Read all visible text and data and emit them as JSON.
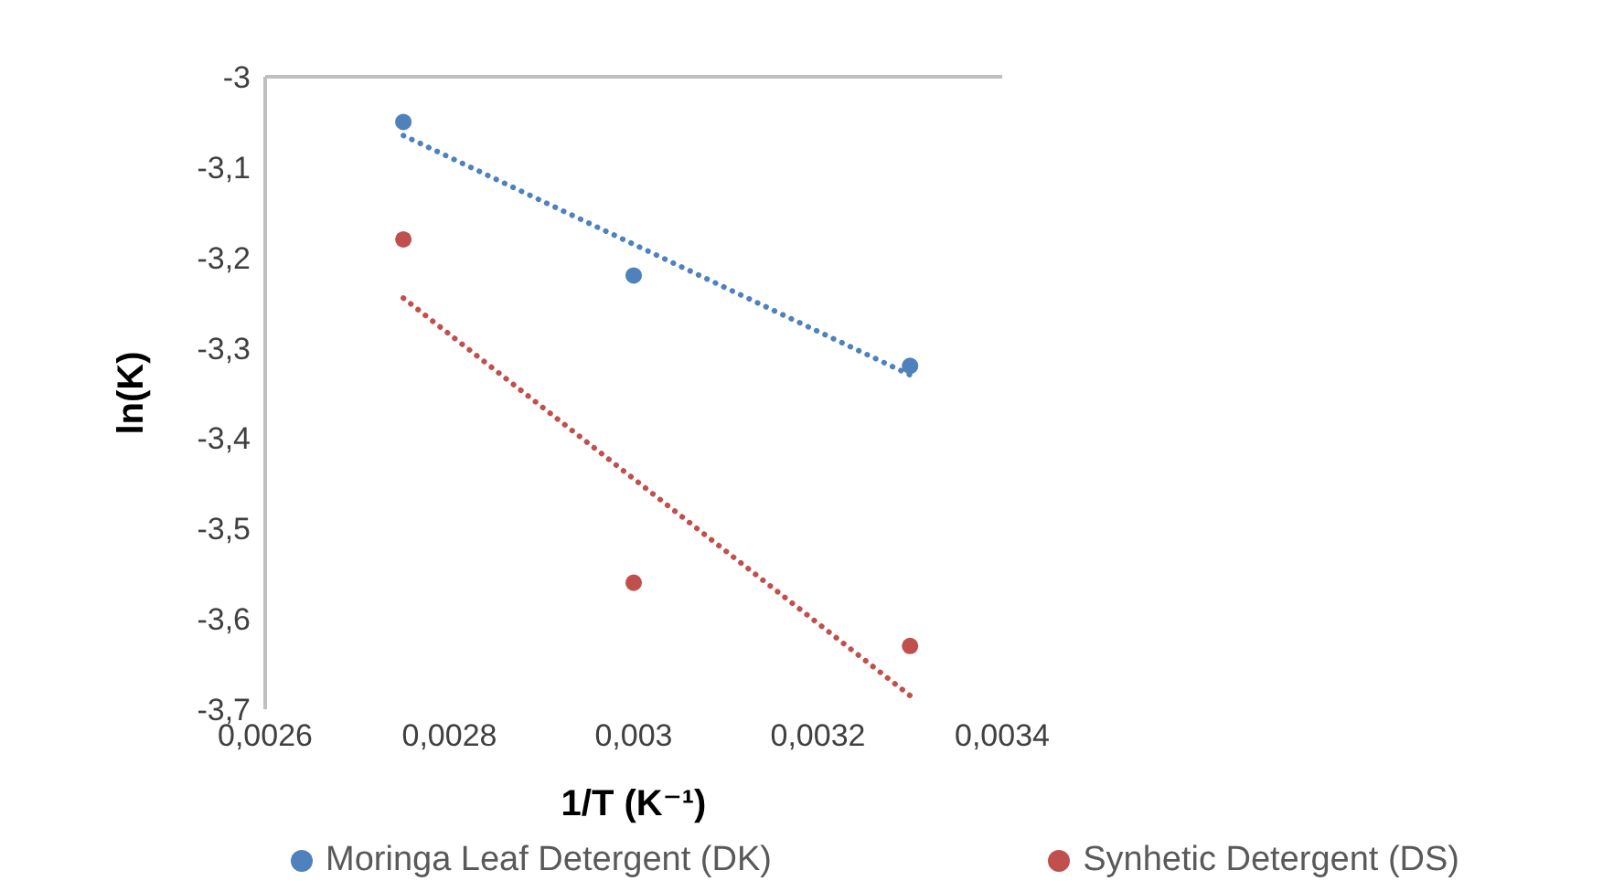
{
  "chart_data": {
    "type": "scatter",
    "xlabel": "1/T (K⁻¹)",
    "ylabel": "ln(K)",
    "xlim": [
      0.0026,
      0.0034
    ],
    "xticks": [
      {
        "value": 0.0026,
        "label": "0,0026"
      },
      {
        "value": 0.0028,
        "label": "0,0028"
      },
      {
        "value": 0.003,
        "label": "0,003"
      },
      {
        "value": 0.0032,
        "label": "0,0032"
      },
      {
        "value": 0.0034,
        "label": "0,0034"
      }
    ],
    "ylim": [
      -3.7,
      -3
    ],
    "yticks": [
      {
        "value": -3.7,
        "label": "-3,7"
      },
      {
        "value": -3.6,
        "label": "-3,6"
      },
      {
        "value": -3.5,
        "label": "-3,5"
      },
      {
        "value": -3.4,
        "label": "-3,4"
      },
      {
        "value": -3.3,
        "label": "-3,3"
      },
      {
        "value": -3.2,
        "label": "-3,2"
      },
      {
        "value": -3.1,
        "label": "-3,1"
      },
      {
        "value": -3,
        "label": "-3"
      }
    ],
    "grid": false,
    "legend": "bottom",
    "marker": "circle",
    "ref_lines": [
      {
        "axis": "y",
        "value": -3,
        "color": "#bfbfbf"
      }
    ],
    "series": [
      {
        "name": "Moringa Leaf Detergent (DK)",
        "color": "#4f81bd",
        "x": [
          0.00275,
          0.003,
          0.0033
        ],
        "values": [
          -3.05,
          -3.22,
          -3.32
        ]
      },
      {
        "name": "Synhetic Detergent (DS)",
        "color": "#c0504d",
        "x": [
          0.00275,
          0.003,
          0.0033
        ],
        "values": [
          -3.18,
          -3.56,
          -3.63
        ]
      },
      {
        "type": "line",
        "color": "#4f81bd",
        "line_style": "dotted",
        "marker": "none",
        "x": [
          0.00275,
          0.0033
        ],
        "values": [
          -3.065,
          -3.33
        ]
      },
      {
        "type": "line",
        "color": "#c0504d",
        "line_style": "dotted",
        "marker": "none",
        "x": [
          0.00275,
          0.0033
        ],
        "values": [
          -3.245,
          -3.685
        ]
      }
    ]
  }
}
